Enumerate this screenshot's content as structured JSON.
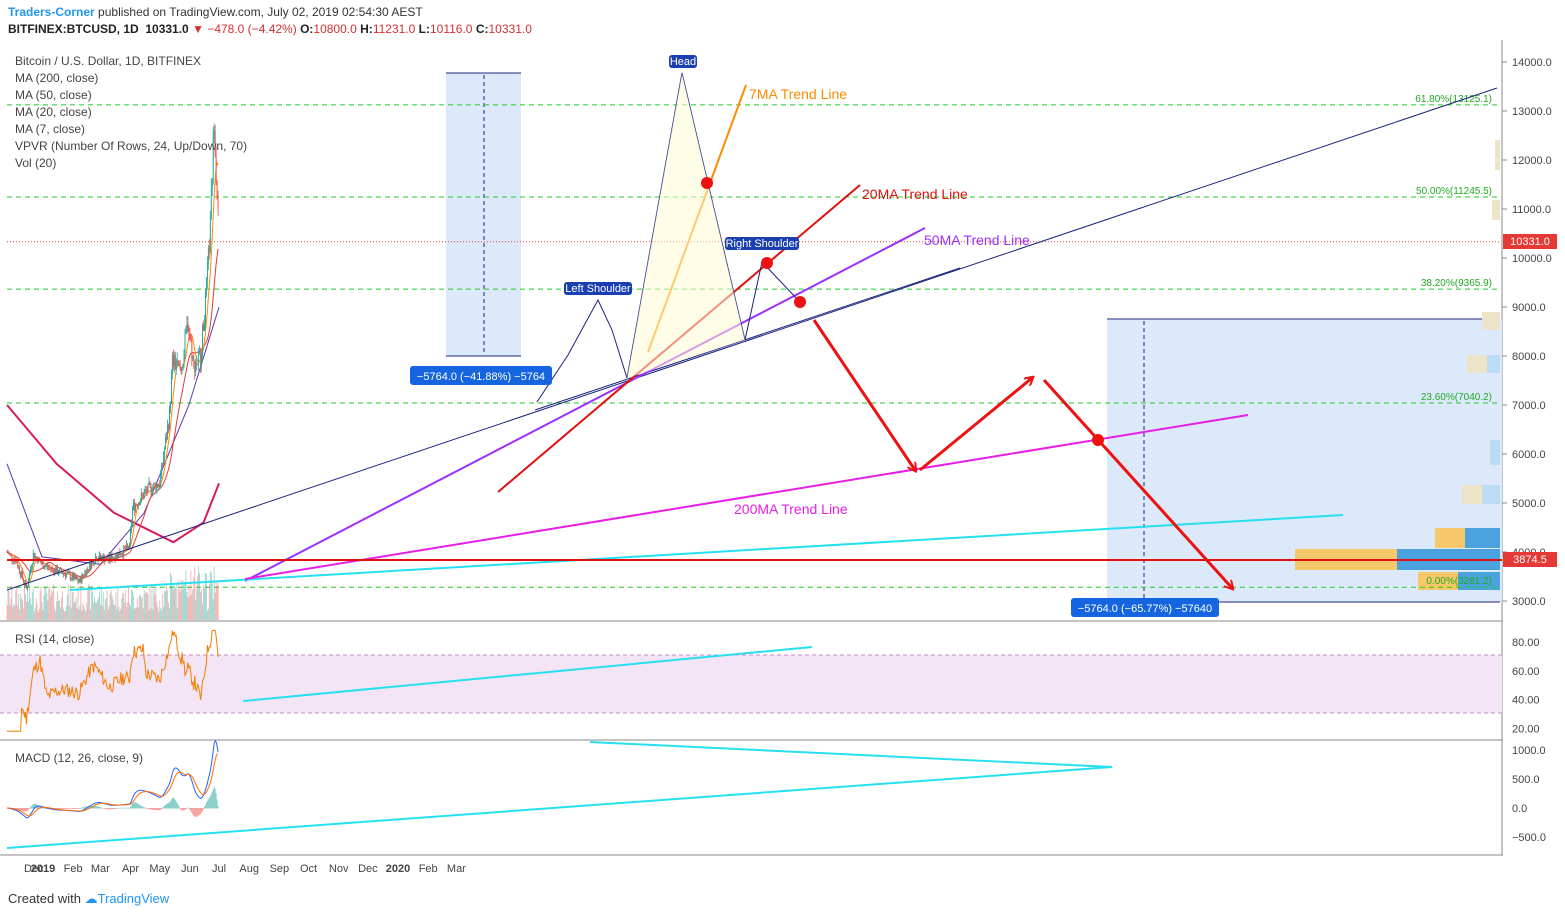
{
  "header": {
    "author": "Traders-Corner",
    "published": "published on TradingView.com, July 02, 2019 02:54:30 AEST",
    "symbol": "BITFINEX:BTCUSD, 1D",
    "last": "10331.0",
    "change_icon": "down-triangle-icon",
    "change": "−478.0 (−4.42%)",
    "o_label": "O:",
    "o_value": "10800.0",
    "h_label": "H:",
    "h_value": "11231.0",
    "l_label": "L:",
    "l_value": "10116.0",
    "c_label": "C:",
    "c_value": "10331.0"
  },
  "legend": [
    "Bitcoin / U.S. Dollar, 1D, BITFINEX",
    "MA (200, close)",
    "MA (50, close)",
    "MA (20, close)",
    "MA (7, close)",
    "VPVR (Number Of Rows, 24, Up/Down, 70)",
    "Vol (20)"
  ],
  "panes": {
    "rsi_title": "RSI (14, close)",
    "macd_title": "MACD (12, 26, close, 9)"
  },
  "footer": {
    "created": "Created with",
    "brand": "TradingView"
  },
  "colors": {
    "up": "#26a69a",
    "down": "#ef5350",
    "ma200": "#d81b60",
    "ma50": "#5e35b1",
    "ma20": "#e53935",
    "ma7": "#fb8c00",
    "fib": "#22cc22",
    "trend_blue": "#1a237e",
    "trend_cyan": "#26e0f0",
    "red_arrow": "#ee1111",
    "rsi_band": "#f3e5f5"
  },
  "chart_data": {
    "type": "candlestick",
    "title": "Bitcoin / U.S. Dollar, 1D, BITFINEX",
    "x_ticks": [
      "Dec",
      "2019",
      "Feb",
      "Mar",
      "Apr",
      "May",
      "Jun",
      "Jul",
      "Aug",
      "Sep",
      "Oct",
      "Nov",
      "Dec",
      "2020",
      "Feb",
      "Mar"
    ],
    "y_ticks": [
      "14000.0",
      "13000.0",
      "12000.0",
      "11000.0",
      "10000.0",
      "9000.0",
      "8000.0",
      "7000.0",
      "6000.0",
      "5000.0",
      "4000.0",
      "3000.0"
    ],
    "ylim": [
      2750,
      14350
    ],
    "last_price_label": "10331.0",
    "support_label": "3874.5",
    "support_level": 3874.5,
    "fib_levels": [
      {
        "label": "61.80%(13125.1)",
        "price": 13125.1
      },
      {
        "label": "50.00%(11245.5)",
        "price": 11245.5
      },
      {
        "label": "38.20%(9365.9)",
        "price": 9365.9
      },
      {
        "label": "23.60%(7040.2)",
        "price": 7040.2
      },
      {
        "label": "0.00%(3281.2)",
        "price": 3281.2
      }
    ],
    "close_path": [
      {
        "date": "2018-11-25",
        "close": 4000
      },
      {
        "date": "2018-12-05",
        "close": 3800
      },
      {
        "date": "2018-12-15",
        "close": 3250
      },
      {
        "date": "2018-12-22",
        "close": 3950
      },
      {
        "date": "2018-12-31",
        "close": 3750
      },
      {
        "date": "2019-01-10",
        "close": 3650
      },
      {
        "date": "2019-01-25",
        "close": 3550
      },
      {
        "date": "2019-02-07",
        "close": 3400
      },
      {
        "date": "2019-02-24",
        "close": 3900
      },
      {
        "date": "2019-03-10",
        "close": 3850
      },
      {
        "date": "2019-03-31",
        "close": 4100
      },
      {
        "date": "2019-04-03",
        "close": 4900
      },
      {
        "date": "2019-04-20",
        "close": 5300
      },
      {
        "date": "2019-05-01",
        "close": 5400
      },
      {
        "date": "2019-05-11",
        "close": 6800
      },
      {
        "date": "2019-05-14",
        "close": 7900
      },
      {
        "date": "2019-05-23",
        "close": 7700
      },
      {
        "date": "2019-05-30",
        "close": 8700
      },
      {
        "date": "2019-06-05",
        "close": 7800
      },
      {
        "date": "2019-06-12",
        "close": 8000
      },
      {
        "date": "2019-06-17",
        "close": 9100
      },
      {
        "date": "2019-06-22",
        "close": 10600
      },
      {
        "date": "2019-06-26",
        "close": 12900
      },
      {
        "date": "2019-06-28",
        "close": 11800
      },
      {
        "date": "2019-07-01",
        "close": 10331
      }
    ],
    "moving_averages": [
      {
        "name": "MA (200, close)",
        "points": [
          {
            "date": "2018-11-25",
            "value": 7000
          },
          {
            "date": "2019-01-15",
            "value": 5800
          },
          {
            "date": "2019-03-15",
            "value": 4800
          },
          {
            "date": "2019-05-15",
            "value": 4200
          },
          {
            "date": "2019-06-15",
            "value": 4600
          },
          {
            "date": "2019-07-01",
            "value": 5400
          }
        ]
      },
      {
        "name": "MA (50, close)",
        "points": [
          {
            "date": "2018-11-25",
            "value": 5800
          },
          {
            "date": "2018-12-31",
            "value": 3900
          },
          {
            "date": "2019-03-01",
            "value": 3750
          },
          {
            "date": "2019-04-15",
            "value": 4800
          },
          {
            "date": "2019-05-31",
            "value": 7000
          },
          {
            "date": "2019-07-01",
            "value": 9000
          }
        ]
      }
    ],
    "patterns": [
      {
        "label": "Head",
        "price": 13750
      },
      {
        "label": "Left Shoulder",
        "price": 9100
      },
      {
        "label": "Right Shoulder",
        "price": 9900
      }
    ],
    "trend_lines": [
      {
        "label": "7MA Trend Line"
      },
      {
        "label": "20MA Trend Line"
      },
      {
        "label": "50MA Trend Line"
      },
      {
        "label": "200MA Trend Line"
      }
    ],
    "measure_labels": [
      "−5764.0 (−41.88%) −5764",
      "−5764.0 (−65.77%) −57640"
    ],
    "rsi": {
      "ticks": [
        "80.00",
        "60.00",
        "40.00",
        "20.00"
      ],
      "ylim": [
        15,
        90
      ],
      "band": [
        30,
        70
      ]
    },
    "macd": {
      "ticks": [
        "1000.0",
        "500.0",
        "0.0",
        "−500.0"
      ],
      "ylim": [
        -650,
        1150
      ]
    }
  }
}
